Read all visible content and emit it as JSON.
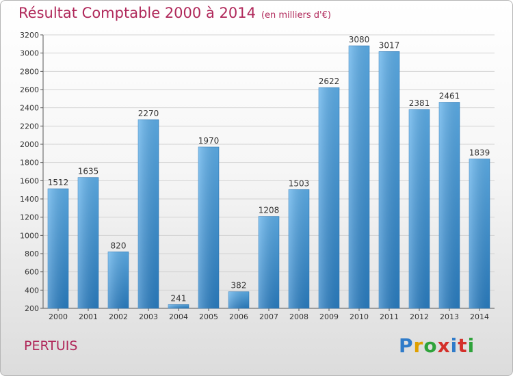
{
  "header": {
    "title": "Résultat Comptable 2000 à 2014",
    "subtitle": "(en milliers d'€)"
  },
  "footer": {
    "place": "PERTUIS",
    "logo": {
      "letters": [
        "P",
        "r",
        "o",
        "x",
        "i",
        "t",
        "i"
      ],
      "colors": [
        "#2f7bc9",
        "#e0a000",
        "#2fa33b",
        "#d4302a",
        "#2f7bc9",
        "#d4302a",
        "#2fa33b"
      ]
    }
  },
  "chart_data": {
    "type": "bar",
    "title": "Résultat Comptable 2000 à 2014",
    "subtitle": "(en milliers d'€)",
    "xlabel": "",
    "ylabel": "",
    "categories": [
      "2000",
      "2001",
      "2002",
      "2003",
      "2004",
      "2005",
      "2006",
      "2007",
      "2008",
      "2009",
      "2010",
      "2011",
      "2012",
      "2013",
      "2014"
    ],
    "values": [
      1512,
      1635,
      820,
      2270,
      241,
      1970,
      382,
      1208,
      1503,
      2622,
      3080,
      3017,
      2381,
      2461,
      1839
    ],
    "ylim": [
      200,
      3200
    ],
    "yticks": [
      200,
      400,
      600,
      800,
      1000,
      1200,
      1400,
      1600,
      1800,
      2000,
      2200,
      2400,
      2600,
      2800,
      3000,
      3200
    ],
    "grid": true,
    "legend": "none",
    "colors": {
      "bar_top": "#5fb1ec",
      "bar_bottom": "#2a7fc4",
      "grid": "#d2d2d2"
    }
  }
}
